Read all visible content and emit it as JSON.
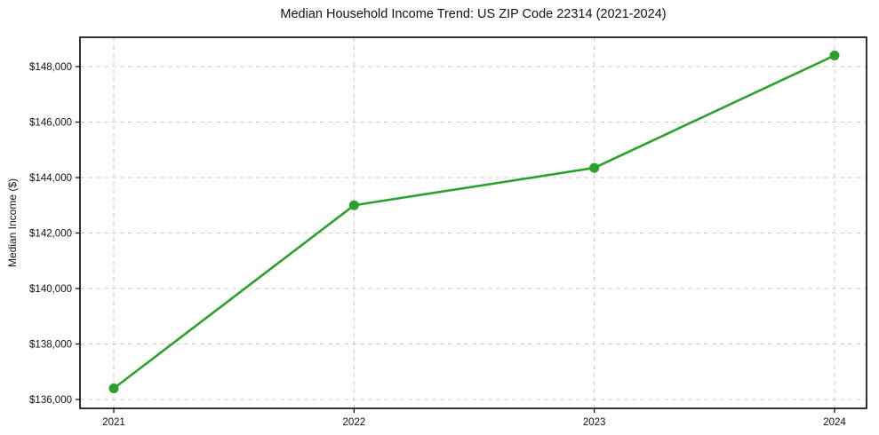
{
  "chart_data": {
    "type": "line",
    "title": "Median Household Income Trend: US ZIP Code 22314 (2021-2024)",
    "xlabel": "",
    "ylabel": "Median Income ($)",
    "categories": [
      "2021",
      "2022",
      "2023",
      "2024"
    ],
    "series": [
      {
        "name": "Median Household Income",
        "values": [
          136400,
          143000,
          144350,
          148400
        ]
      }
    ],
    "yticks": [
      136000,
      138000,
      140000,
      142000,
      144000,
      146000,
      148000
    ],
    "ytick_labels": [
      "$136,000",
      "$138,000",
      "$140,000",
      "$142,000",
      "$144,000",
      "$146,000",
      "$148,000"
    ],
    "ylim": [
      135680,
      149056
    ],
    "grid": true,
    "legend": "none",
    "colors": {
      "line": "#2ca02c",
      "marker": "#2ca02c",
      "grid": "#cccccc",
      "spine": "#000000",
      "background": "#ffffff"
    }
  }
}
